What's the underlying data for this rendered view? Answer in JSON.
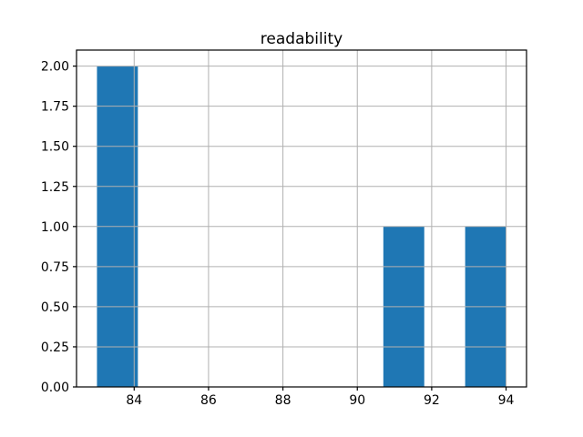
{
  "chart_data": {
    "type": "bar",
    "subtype": "histogram",
    "title": "readability",
    "xlabel": "",
    "ylabel": "",
    "bin_edges": [
      83.0,
      84.1,
      85.2,
      86.3,
      87.4,
      88.5,
      89.6,
      90.7,
      91.8,
      92.9,
      94.0
    ],
    "counts": [
      2,
      0,
      0,
      0,
      0,
      0,
      0,
      1,
      0,
      1
    ],
    "xlim": [
      82.45,
      94.55
    ],
    "ylim": [
      0,
      2.1
    ],
    "xticks": [
      84,
      86,
      88,
      90,
      92,
      94
    ],
    "xtick_labels": [
      "84",
      "86",
      "88",
      "90",
      "92",
      "94"
    ],
    "yticks": [
      0,
      0.25,
      0.5,
      0.75,
      1,
      1.25,
      1.5,
      1.75,
      2
    ],
    "ytick_labels": [
      "0.00",
      "0.25",
      "0.50",
      "0.75",
      "1.00",
      "1.25",
      "1.50",
      "1.75",
      "2.00"
    ],
    "grid": true,
    "grid_above_bars": true,
    "legend": null,
    "colors": {
      "bar": "#1f77b4",
      "grid": "#b0b0b0",
      "axis": "#000000",
      "text": "#000000",
      "background": "#ffffff"
    }
  }
}
